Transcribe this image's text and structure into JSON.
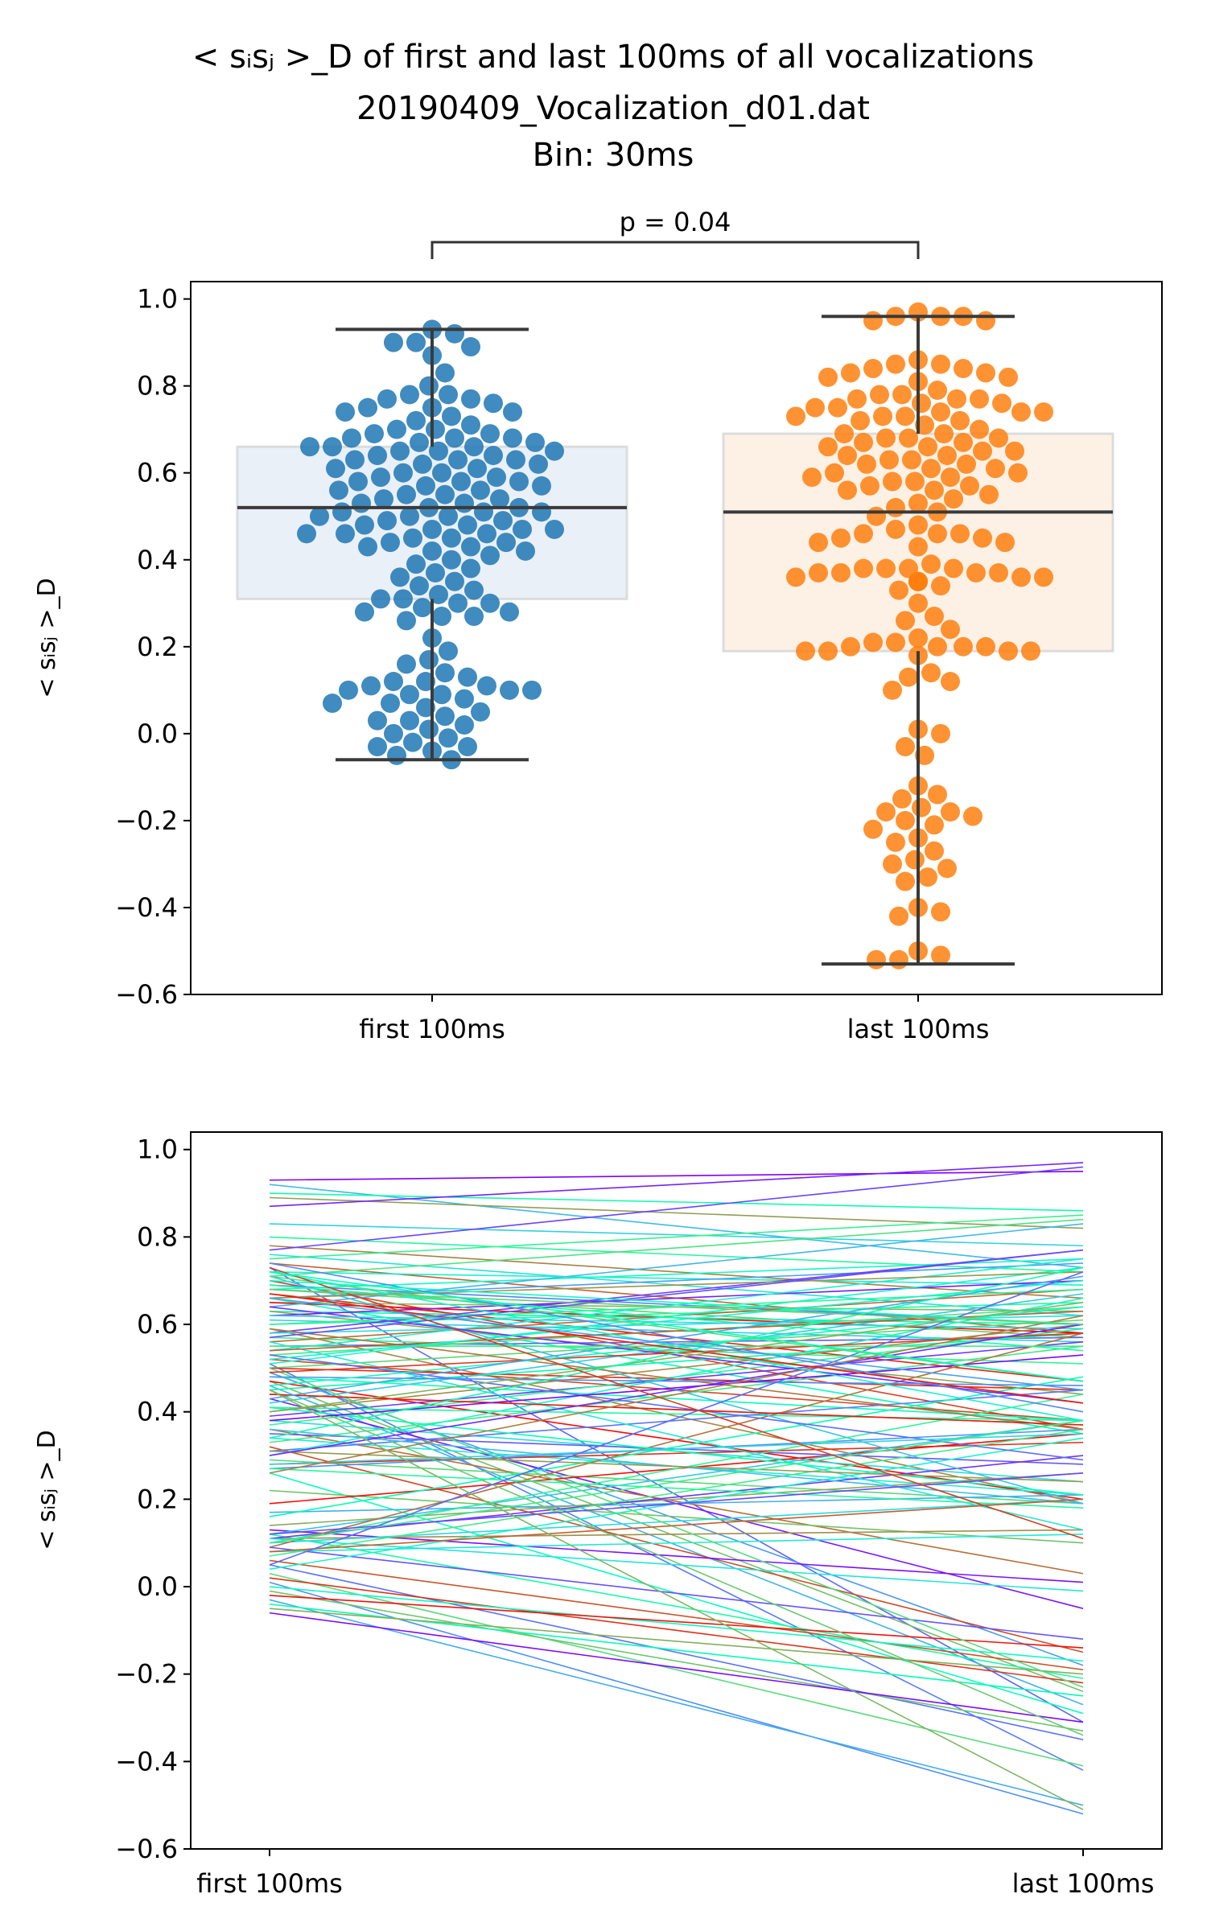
{
  "figure": {
    "title_lines": [
      "< sᵢsⱼ >_D of first and last 100ms of all vocalizations",
      "20190409_Vocalization_d01.dat",
      "Bin: 30ms"
    ]
  },
  "chart_data": [
    {
      "type": "box+swarm",
      "categories": [
        "first 100ms",
        "last 100ms"
      ],
      "ylabel": "< sᵢsⱼ >_D",
      "ylim": [
        -0.6,
        1.04
      ],
      "yticks": [
        -0.6,
        -0.4,
        -0.2,
        0.0,
        0.2,
        0.4,
        0.6,
        0.8,
        1.0
      ],
      "ytick_labels": [
        "−0.6",
        "−0.4",
        "−0.2",
        "0.0",
        "0.2",
        "0.4",
        "0.6",
        "0.8",
        "1.0"
      ],
      "annotation": "p = 0.04",
      "colors": {
        "first": "#1f77b4",
        "last": "#ff7f0e",
        "first_box": "#eaf0f7",
        "last_box": "#fdf1e6",
        "median": "#3a3a3a"
      },
      "box": [
        {
          "name": "first 100ms",
          "q1": 0.31,
          "median": 0.52,
          "q3": 0.66,
          "whisker_low": -0.06,
          "whisker_high": 0.93
        },
        {
          "name": "last 100ms",
          "q1": 0.19,
          "median": 0.51,
          "q3": 0.69,
          "whisker_low": -0.53,
          "whisker_high": 0.96
        }
      ],
      "swarm_points": {
        "first 100ms": [
          0.93,
          0.92,
          0.9,
          0.9,
          0.89,
          0.87,
          0.83,
          0.8,
          0.78,
          0.78,
          0.77,
          0.77,
          0.76,
          0.75,
          0.75,
          0.74,
          0.74,
          0.73,
          0.72,
          0.71,
          0.7,
          0.7,
          0.69,
          0.69,
          0.68,
          0.68,
          0.68,
          0.67,
          0.67,
          0.66,
          0.66,
          0.66,
          0.65,
          0.65,
          0.65,
          0.64,
          0.64,
          0.63,
          0.63,
          0.63,
          0.62,
          0.62,
          0.61,
          0.61,
          0.6,
          0.6,
          0.59,
          0.59,
          0.58,
          0.58,
          0.58,
          0.57,
          0.57,
          0.56,
          0.56,
          0.55,
          0.55,
          0.54,
          0.54,
          0.53,
          0.53,
          0.52,
          0.52,
          0.51,
          0.51,
          0.51,
          0.5,
          0.5,
          0.5,
          0.49,
          0.49,
          0.48,
          0.48,
          0.47,
          0.47,
          0.47,
          0.46,
          0.46,
          0.46,
          0.45,
          0.45,
          0.44,
          0.44,
          0.43,
          0.43,
          0.42,
          0.42,
          0.41,
          0.4,
          0.39,
          0.38,
          0.37,
          0.36,
          0.35,
          0.34,
          0.33,
          0.32,
          0.31,
          0.31,
          0.3,
          0.3,
          0.29,
          0.28,
          0.28,
          0.27,
          0.27,
          0.26,
          0.22,
          0.19,
          0.17,
          0.16,
          0.14,
          0.13,
          0.12,
          0.12,
          0.11,
          0.11,
          0.1,
          0.1,
          0.1,
          0.09,
          0.09,
          0.08,
          0.07,
          0.07,
          0.06,
          0.05,
          0.04,
          0.03,
          0.03,
          0.02,
          0.01,
          0.0,
          -0.01,
          -0.02,
          -0.03,
          -0.03,
          -0.04,
          -0.05,
          -0.06
        ],
        "last 100ms": [
          0.97,
          0.96,
          0.96,
          0.96,
          0.95,
          0.95,
          0.86,
          0.85,
          0.85,
          0.84,
          0.84,
          0.83,
          0.83,
          0.82,
          0.82,
          0.81,
          0.79,
          0.78,
          0.78,
          0.77,
          0.77,
          0.77,
          0.76,
          0.76,
          0.75,
          0.75,
          0.74,
          0.74,
          0.74,
          0.73,
          0.73,
          0.73,
          0.72,
          0.72,
          0.71,
          0.7,
          0.69,
          0.69,
          0.68,
          0.68,
          0.68,
          0.67,
          0.67,
          0.66,
          0.66,
          0.65,
          0.65,
          0.64,
          0.64,
          0.63,
          0.63,
          0.62,
          0.62,
          0.61,
          0.61,
          0.6,
          0.6,
          0.59,
          0.59,
          0.58,
          0.58,
          0.57,
          0.57,
          0.56,
          0.56,
          0.55,
          0.54,
          0.53,
          0.52,
          0.51,
          0.5,
          0.48,
          0.47,
          0.46,
          0.46,
          0.46,
          0.45,
          0.45,
          0.44,
          0.44,
          0.43,
          0.39,
          0.38,
          0.38,
          0.38,
          0.38,
          0.37,
          0.37,
          0.37,
          0.37,
          0.36,
          0.36,
          0.36,
          0.35,
          0.35,
          0.35,
          0.34,
          0.33,
          0.3,
          0.27,
          0.26,
          0.24,
          0.22,
          0.21,
          0.21,
          0.2,
          0.2,
          0.2,
          0.2,
          0.19,
          0.19,
          0.19,
          0.19,
          0.18,
          0.14,
          0.13,
          0.12,
          0.1,
          0.01,
          0.0,
          -0.03,
          -0.05,
          -0.12,
          -0.14,
          -0.15,
          -0.17,
          -0.18,
          -0.18,
          -0.19,
          -0.2,
          -0.21,
          -0.22,
          -0.24,
          -0.25,
          -0.27,
          -0.29,
          -0.3,
          -0.31,
          -0.33,
          -0.34,
          -0.4,
          -0.41,
          -0.42,
          -0.5,
          -0.51,
          -0.52,
          -0.52
        ]
      }
    },
    {
      "type": "line",
      "categories": [
        "first 100ms",
        "last 100ms"
      ],
      "ylabel": "< sᵢsⱼ >_D",
      "ylim": [
        -0.6,
        1.04
      ],
      "yticks": [
        -0.6,
        -0.4,
        -0.2,
        0.0,
        0.2,
        0.4,
        0.6,
        0.8,
        1.0
      ],
      "ytick_labels": [
        "−0.6",
        "−0.4",
        "−0.2",
        "0.0",
        "0.2",
        "0.4",
        "0.6",
        "0.8",
        "1.0"
      ],
      "colormap": "rainbow",
      "pairs": [
        [
          0.93,
          0.95
        ],
        [
          0.92,
          0.73
        ],
        [
          0.9,
          0.86
        ],
        [
          0.89,
          0.82
        ],
        [
          0.87,
          0.97
        ],
        [
          0.83,
          0.78
        ],
        [
          0.8,
          0.72
        ],
        [
          0.78,
          0.66
        ],
        [
          0.77,
          0.96
        ],
        [
          0.76,
          0.62
        ],
        [
          0.75,
          0.85
        ],
        [
          0.74,
          0.58
        ],
        [
          0.73,
          -0.31
        ],
        [
          0.72,
          0.69
        ],
        [
          0.71,
          0.84
        ],
        [
          0.7,
          0.36
        ],
        [
          0.69,
          0.6
        ],
        [
          0.68,
          0.75
        ],
        [
          0.68,
          0.57
        ],
        [
          0.67,
          0.47
        ],
        [
          0.66,
          0.74
        ],
        [
          0.66,
          0.35
        ],
        [
          0.65,
          0.63
        ],
        [
          0.65,
          0.58
        ],
        [
          0.64,
          0.83
        ],
        [
          0.63,
          0.6
        ],
        [
          0.63,
          0.44
        ],
        [
          0.62,
          0.7
        ],
        [
          0.61,
          0.56
        ],
        [
          0.6,
          0.65
        ],
        [
          0.59,
          0.19
        ],
        [
          0.58,
          0.77
        ],
        [
          0.58,
          0.62
        ],
        [
          0.57,
          0.51
        ],
        [
          0.56,
          0.68
        ],
        [
          0.55,
          0.57
        ],
        [
          0.54,
          0.75
        ],
        [
          0.53,
          0.64
        ],
        [
          0.52,
          0.38
        ],
        [
          0.51,
          -0.42
        ],
        [
          0.51,
          0.73
        ],
        [
          0.5,
          0.61
        ],
        [
          0.5,
          0.45
        ],
        [
          0.49,
          -0.18
        ],
        [
          0.48,
          0.38
        ],
        [
          0.47,
          -0.24
        ],
        [
          0.47,
          0.2
        ],
        [
          0.46,
          -0.27
        ],
        [
          0.45,
          0.58
        ],
        [
          0.44,
          0.37
        ],
        [
          0.43,
          -0.05
        ],
        [
          0.42,
          0.67
        ],
        [
          0.41,
          0.38
        ],
        [
          0.4,
          0.6
        ],
        [
          0.39,
          0.56
        ],
        [
          0.38,
          0.24
        ],
        [
          0.37,
          0.59
        ],
        [
          0.36,
          0.03
        ],
        [
          0.35,
          0.28
        ],
        [
          0.34,
          0.21
        ],
        [
          0.33,
          0.55
        ],
        [
          0.32,
          -0.15
        ],
        [
          0.31,
          0.45
        ],
        [
          0.3,
          0.66
        ],
        [
          0.29,
          0.19
        ],
        [
          0.28,
          0.33
        ],
        [
          0.27,
          0.36
        ],
        [
          0.26,
          -0.29
        ],
        [
          0.22,
          0.1
        ],
        [
          0.19,
          0.35
        ],
        [
          0.17,
          0.21
        ],
        [
          0.16,
          0.48
        ],
        [
          0.14,
          0.26
        ],
        [
          0.13,
          0.01
        ],
        [
          0.12,
          0.38
        ],
        [
          0.12,
          -0.21
        ],
        [
          0.11,
          0.13
        ],
        [
          0.11,
          0.3
        ],
        [
          0.1,
          0.2
        ],
        [
          0.1,
          0.44
        ],
        [
          0.09,
          0.58
        ],
        [
          0.09,
          -0.12
        ],
        [
          0.08,
          0.12
        ],
        [
          0.07,
          0.36
        ],
        [
          0.06,
          -0.19
        ],
        [
          0.05,
          -0.35
        ],
        [
          0.04,
          0.34
        ],
        [
          0.03,
          -0.41
        ],
        [
          0.02,
          -0.22
        ],
        [
          0.01,
          -0.52
        ],
        [
          0.0,
          -0.17
        ],
        [
          -0.01,
          -0.33
        ],
        [
          -0.02,
          -0.14
        ],
        [
          -0.03,
          -0.5
        ],
        [
          -0.04,
          -0.25
        ],
        [
          -0.05,
          -0.2
        ],
        [
          -0.06,
          -0.31
        ],
        [
          0.71,
          0.19
        ],
        [
          0.69,
          0.54
        ],
        [
          0.66,
          0.72
        ],
        [
          0.64,
          0.42
        ],
        [
          0.62,
          0.59
        ],
        [
          0.6,
          0.68
        ],
        [
          0.59,
          0.36
        ],
        [
          0.57,
          0.77
        ],
        [
          0.56,
          0.13
        ],
        [
          0.55,
          0.55
        ],
        [
          0.54,
          0.63
        ],
        [
          0.53,
          0.29
        ],
        [
          0.52,
          0.7
        ],
        [
          0.5,
          -0.23
        ],
        [
          0.49,
          0.58
        ],
        [
          0.48,
          0.46
        ],
        [
          0.46,
          0.64
        ],
        [
          0.45,
          -0.34
        ],
        [
          0.44,
          0.37
        ],
        [
          0.43,
          0.71
        ],
        [
          0.41,
          0.21
        ],
        [
          0.4,
          0.65
        ],
        [
          0.38,
          0.53
        ],
        [
          0.36,
          0.19
        ],
        [
          0.34,
          0.73
        ],
        [
          0.31,
          0.24
        ],
        [
          0.3,
          0.6
        ],
        [
          0.28,
          0.35
        ],
        [
          0.27,
          0.18
        ],
        [
          0.26,
          0.62
        ],
        [
          0.12,
          0.26
        ],
        [
          0.11,
          -0.01
        ],
        [
          0.1,
          0.38
        ],
        [
          0.08,
          0.2
        ],
        [
          0.05,
          0.72
        ],
        [
          0.72,
          0.38
        ],
        [
          0.71,
          0.47
        ],
        [
          0.73,
          0.11
        ],
        [
          0.74,
          0.4
        ],
        [
          0.7,
          0.6
        ],
        [
          0.68,
          0.6
        ],
        [
          0.67,
          0.42
        ],
        [
          0.66,
          0.45
        ],
        [
          0.72,
          0.47
        ],
        [
          0.45,
          -0.51
        ]
      ]
    }
  ]
}
